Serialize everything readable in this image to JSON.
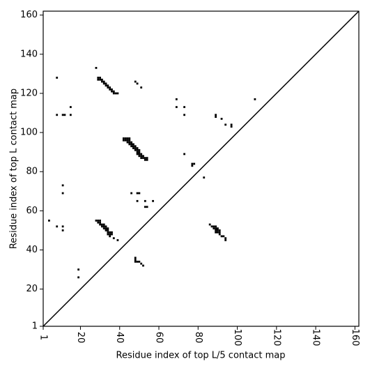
{
  "chart_data": {
    "type": "scatter",
    "xlabel": "Residue index of top L/5 contact map",
    "ylabel": "Residue index of top L contact map",
    "color": "#000000",
    "xlim": [
      1,
      162
    ],
    "ylim": [
      1,
      162
    ],
    "xticks": [
      1,
      20,
      40,
      60,
      80,
      100,
      120,
      140,
      160
    ],
    "yticks": [
      1,
      20,
      40,
      60,
      80,
      100,
      120,
      140,
      160
    ],
    "x": [
      8,
      28,
      29,
      30,
      30,
      31,
      31,
      32,
      32,
      33,
      33,
      34,
      34,
      35,
      35,
      36,
      36,
      37,
      37,
      38,
      39,
      29,
      48,
      49,
      51,
      8,
      11,
      12,
      15,
      15,
      69,
      69,
      73,
      73,
      109,
      89,
      89,
      92,
      94,
      97,
      97,
      42,
      43,
      44,
      45,
      42,
      43,
      44,
      45,
      44,
      45,
      46,
      45,
      46,
      47,
      46,
      47,
      48,
      47,
      48,
      49,
      48,
      49,
      50,
      49,
      50,
      49,
      50,
      51,
      50,
      51,
      52,
      51,
      52,
      53,
      53,
      54,
      54,
      73,
      77,
      78,
      77,
      83,
      11,
      11,
      46,
      49,
      50,
      49,
      53,
      57,
      53,
      54,
      4,
      8,
      11,
      11,
      28,
      29,
      30,
      29,
      30,
      30,
      31,
      32,
      31,
      32,
      33,
      32,
      33,
      34,
      33,
      34,
      34,
      35,
      36,
      34,
      35,
      36,
      35,
      37,
      39,
      86,
      87,
      88,
      89,
      88,
      89,
      90,
      89,
      90,
      91,
      89,
      90,
      91,
      91,
      92,
      93,
      94,
      94,
      48,
      48,
      48,
      49,
      50,
      51,
      52,
      19,
      19
    ],
    "values": [
      128,
      133,
      128,
      128,
      127,
      127,
      126,
      126,
      125,
      125,
      124,
      124,
      123,
      123,
      122,
      122,
      121,
      121,
      120,
      120,
      120,
      127,
      126,
      125,
      123,
      109,
      109,
      109,
      109,
      113,
      117,
      113,
      113,
      109,
      117,
      109,
      108,
      107,
      104,
      104,
      103,
      97,
      97,
      97,
      97,
      96,
      96,
      96,
      96,
      95,
      95,
      95,
      94,
      94,
      94,
      93,
      93,
      93,
      92,
      92,
      92,
      91,
      91,
      91,
      90,
      90,
      89,
      89,
      89,
      88,
      88,
      88,
      87,
      87,
      87,
      86,
      86,
      87,
      89,
      84,
      84,
      83,
      77,
      73,
      69,
      69,
      69,
      69,
      65,
      65,
      65,
      62,
      62,
      55,
      52,
      52,
      50,
      55,
      55,
      55,
      54,
      54,
      53,
      53,
      53,
      52,
      52,
      52,
      51,
      51,
      51,
      50,
      50,
      49,
      49,
      49,
      48,
      48,
      48,
      47,
      46,
      45,
      53,
      52,
      52,
      52,
      51,
      51,
      51,
      50,
      50,
      50,
      49,
      49,
      49,
      48,
      47,
      47,
      46,
      45,
      36,
      35,
      34,
      34,
      34,
      33,
      32,
      30,
      26
    ]
  }
}
